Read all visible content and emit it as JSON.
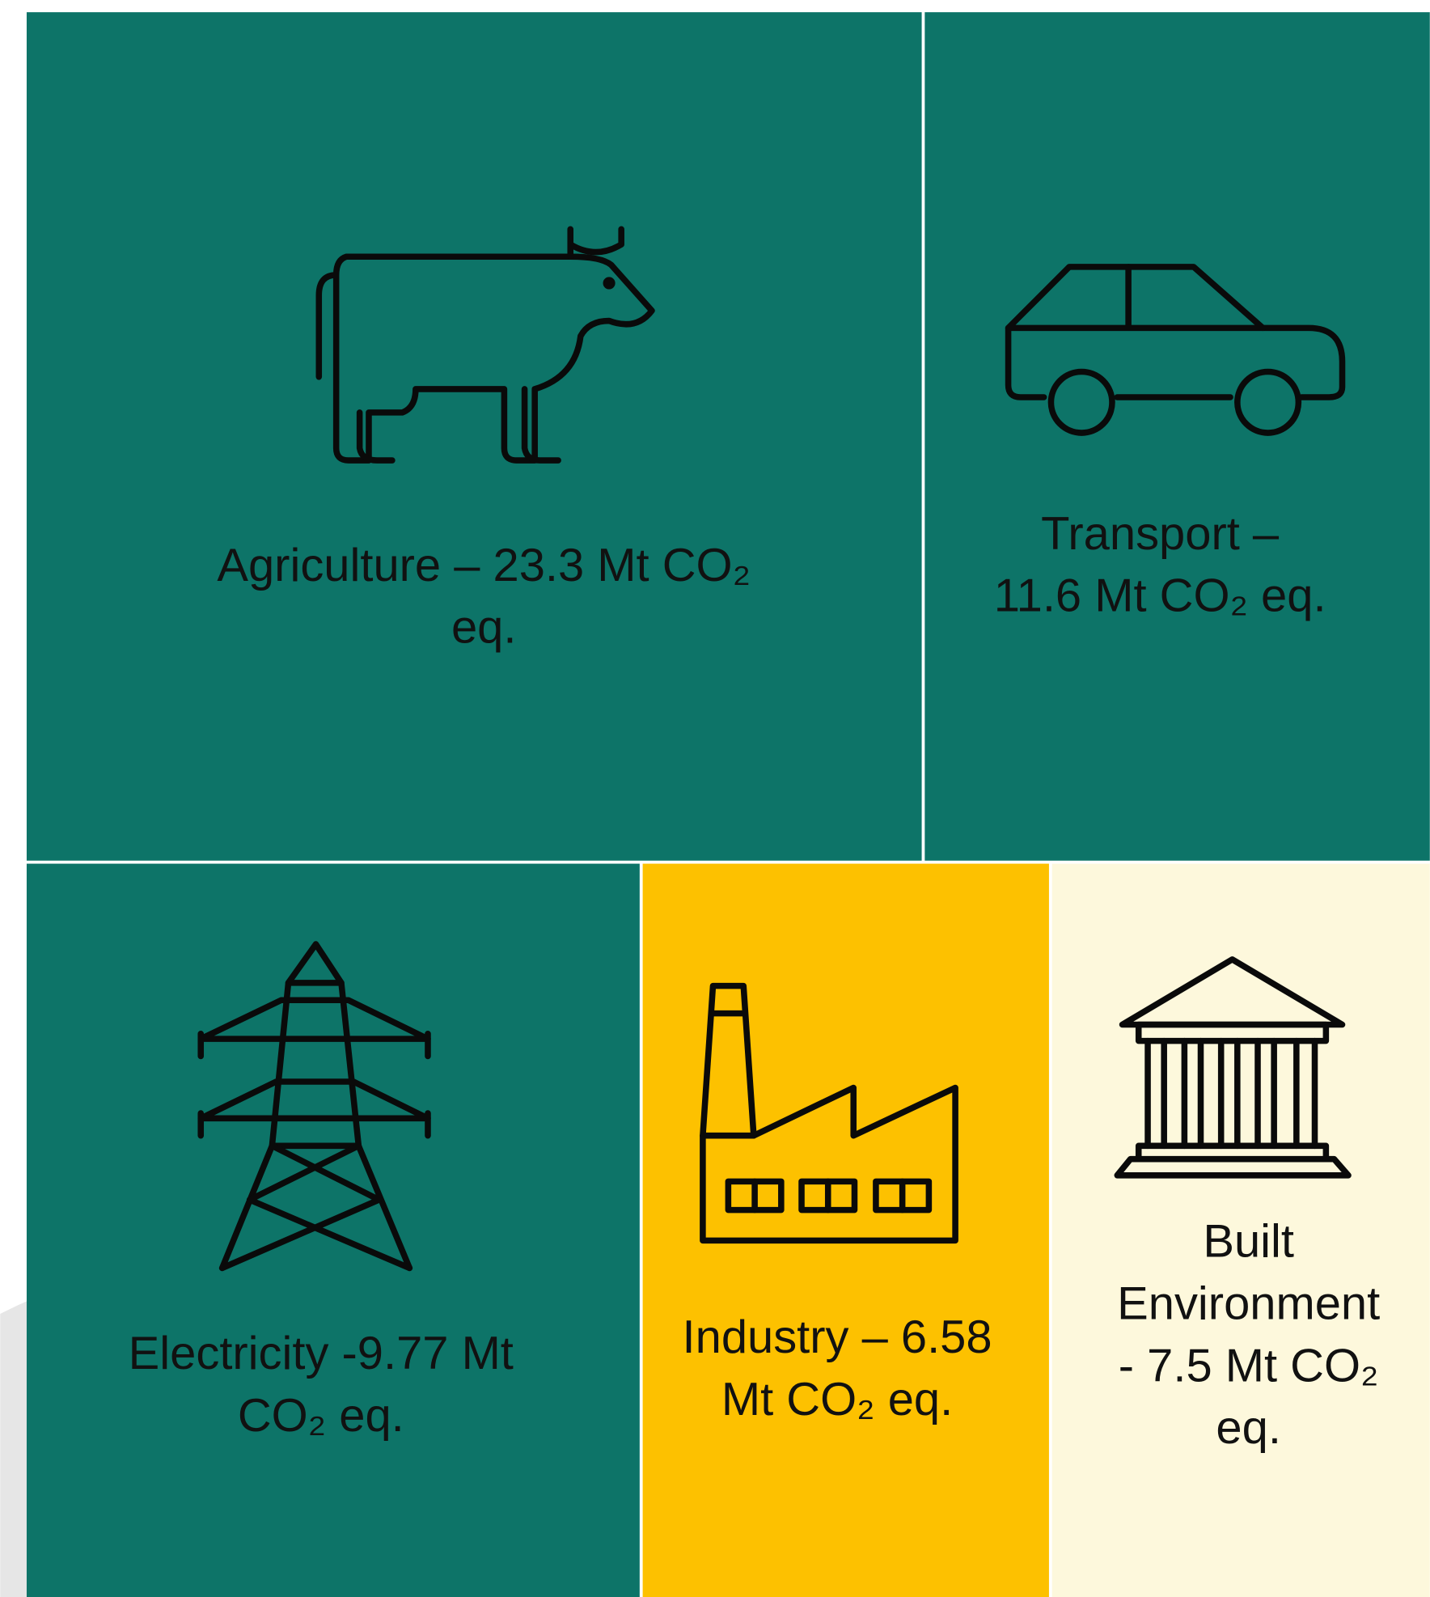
{
  "tiles": [
    {
      "lines": [
        "Agriculture – 23.3 Mt CO₂",
        "eq."
      ]
    },
    {
      "lines": [
        "Transport –",
        "11.6 Mt CO₂ eq."
      ]
    },
    {
      "lines": [
        "Electricity -9.77 Mt",
        "CO₂ eq."
      ]
    },
    {
      "lines": [
        "Industry – 6.58",
        "Mt CO₂ eq."
      ]
    },
    {
      "lines": [
        "Built",
        "Environment",
        "-  7.5 Mt CO₂",
        "eq."
      ]
    }
  ]
}
